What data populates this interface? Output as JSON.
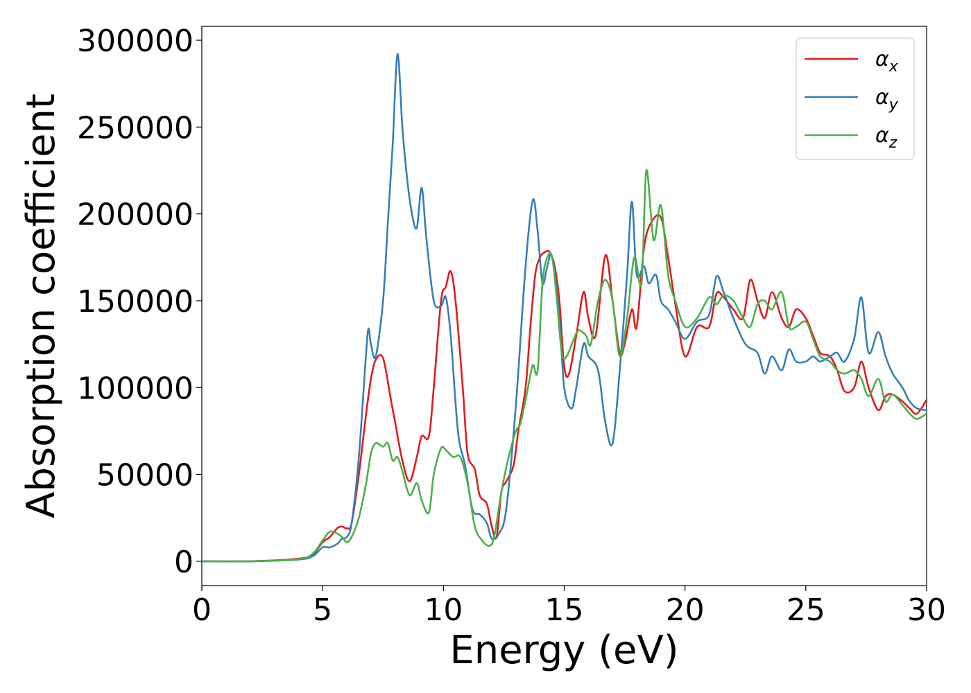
{
  "chart_data": {
    "type": "line",
    "xlabel": "Energy (eV)",
    "ylabel": "Absorption coefficient",
    "xlim": [
      0,
      30
    ],
    "ylim": [
      -14000,
      308000
    ],
    "xticks": [
      "0",
      "5",
      "10",
      "15",
      "20",
      "25",
      "30"
    ],
    "yticks": [
      "0",
      "50000",
      "100000",
      "150000",
      "200000",
      "250000",
      "300000"
    ],
    "grid": false,
    "legend_position": "top-right",
    "series": [
      {
        "name": "α_x",
        "symbol": "α",
        "subscript": "x",
        "color": "#e41a1c",
        "x": [
          0,
          2,
          4,
          4.6,
          5,
          5.3,
          5.6,
          5.8,
          6.0,
          6.2,
          6.5,
          6.8,
          7.0,
          7.2,
          7.5,
          7.8,
          8.0,
          8.3,
          8.6,
          8.9,
          9.1,
          9.4,
          9.6,
          9.9,
          10.1,
          10.3,
          10.5,
          10.8,
          11.0,
          11.3,
          11.5,
          11.8,
          12.0,
          12.2,
          12.4,
          12.6,
          12.9,
          13.1,
          13.4,
          13.6,
          13.8,
          14.0,
          14.2,
          14.4,
          14.6,
          14.8,
          15.0,
          15.2,
          15.5,
          15.8,
          16.0,
          16.3,
          16.7,
          17.0,
          17.3,
          17.5,
          17.8,
          18.0,
          18.3,
          18.6,
          19.0,
          19.3,
          19.6,
          20.0,
          20.5,
          21.0,
          21.3,
          21.6,
          22.0,
          22.4,
          22.7,
          23.0,
          23.3,
          23.6,
          24.0,
          24.3,
          24.6,
          25.0,
          25.3,
          25.6,
          26.0,
          26.3,
          26.6,
          27.0,
          27.3,
          27.6,
          28.0,
          28.3,
          28.6,
          29.0,
          29.3,
          29.6,
          30.0
        ],
        "y": [
          0,
          0,
          1500,
          4000,
          11000,
          14000,
          19000,
          20000,
          19000,
          22000,
          50000,
          85000,
          105000,
          116000,
          117000,
          95000,
          80000,
          58000,
          46000,
          60000,
          72000,
          72000,
          100000,
          150000,
          158000,
          167000,
          150000,
          100000,
          62000,
          53000,
          38000,
          33000,
          20000,
          14000,
          40000,
          46000,
          55000,
          75000,
          100000,
          135000,
          165000,
          175000,
          178000,
          178000,
          170000,
          150000,
          112000,
          108000,
          130000,
          155000,
          140000,
          130000,
          176000,
          150000,
          120000,
          125000,
          145000,
          135000,
          180000,
          195000,
          198000,
          175000,
          148000,
          118000,
          135000,
          135000,
          154000,
          152000,
          145000,
          140000,
          162000,
          150000,
          140000,
          155000,
          140000,
          135000,
          145000,
          140000,
          130000,
          120000,
          118000,
          110000,
          98000,
          100000,
          115000,
          100000,
          87000,
          95000,
          96000,
          92000,
          88000,
          85000,
          93000
        ]
      },
      {
        "name": "α_y",
        "symbol": "α",
        "subscript": "y",
        "color": "#377eb8",
        "x": [
          0,
          2,
          4,
          4.6,
          5,
          5.3,
          5.6,
          5.8,
          6.0,
          6.2,
          6.5,
          6.8,
          6.9,
          7.0,
          7.2,
          7.5,
          7.7,
          7.9,
          8.1,
          8.3,
          8.5,
          8.7,
          8.9,
          9.1,
          9.3,
          9.6,
          9.9,
          10.1,
          10.3,
          10.6,
          10.9,
          11.2,
          11.5,
          11.8,
          12.0,
          12.3,
          12.6,
          13.0,
          13.4,
          13.7,
          13.9,
          14.1,
          14.3,
          14.5,
          14.8,
          15.0,
          15.3,
          15.5,
          15.8,
          16.0,
          16.4,
          16.7,
          17.0,
          17.3,
          17.6,
          17.8,
          18.0,
          18.3,
          18.5,
          18.8,
          19.0,
          19.3,
          19.6,
          20.0,
          20.5,
          21.0,
          21.3,
          21.6,
          22.0,
          22.5,
          23.0,
          23.3,
          23.6,
          24.0,
          24.3,
          24.6,
          25.0,
          25.3,
          25.6,
          26.0,
          26.3,
          26.6,
          27.0,
          27.3,
          27.6,
          28.0,
          28.3,
          28.6,
          29.0,
          29.3,
          29.6,
          30.0
        ],
        "y": [
          0,
          0,
          1000,
          3000,
          8000,
          8000,
          10000,
          13000,
          14000,
          22000,
          60000,
          120000,
          134000,
          125000,
          118000,
          150000,
          195000,
          240000,
          292000,
          250000,
          220000,
          200000,
          192000,
          215000,
          185000,
          150000,
          147000,
          152000,
          130000,
          75000,
          55000,
          30000,
          27000,
          22000,
          13000,
          16000,
          30000,
          90000,
          170000,
          208000,
          190000,
          160000,
          170000,
          175000,
          140000,
          100000,
          88000,
          100000,
          125000,
          118000,
          110000,
          80000,
          68000,
          110000,
          165000,
          207000,
          165000,
          170000,
          160000,
          165000,
          150000,
          145000,
          138000,
          128000,
          138000,
          142000,
          164000,
          155000,
          140000,
          125000,
          120000,
          108000,
          118000,
          110000,
          122000,
          115000,
          115000,
          118000,
          115000,
          118000,
          120000,
          115000,
          128000,
          152000,
          120000,
          132000,
          118000,
          108000,
          100000,
          92000,
          88000,
          87000
        ]
      },
      {
        "name": "α_z",
        "symbol": "α",
        "subscript": "z",
        "color": "#4daf4a",
        "x": [
          0,
          2,
          4,
          4.6,
          5,
          5.3,
          5.6,
          5.8,
          6.0,
          6.2,
          6.5,
          6.8,
          7.0,
          7.2,
          7.5,
          7.7,
          7.9,
          8.1,
          8.3,
          8.6,
          8.9,
          9.1,
          9.4,
          9.6,
          9.9,
          10.1,
          10.4,
          10.7,
          11.0,
          11.3,
          11.6,
          11.9,
          12.1,
          12.4,
          12.7,
          13.0,
          13.2,
          13.5,
          13.7,
          13.9,
          14.1,
          14.3,
          14.5,
          14.7,
          14.9,
          15.1,
          15.4,
          15.6,
          15.9,
          16.1,
          16.4,
          16.7,
          17.0,
          17.3,
          17.6,
          17.9,
          18.2,
          18.4,
          18.7,
          19.0,
          19.3,
          19.6,
          20.0,
          20.5,
          21.0,
          21.3,
          21.6,
          22.0,
          22.4,
          22.7,
          23.0,
          23.3,
          23.6,
          24.0,
          24.3,
          24.6,
          25.0,
          25.3,
          25.6,
          26.0,
          26.3,
          26.6,
          27.0,
          27.3,
          27.6,
          28.0,
          28.3,
          28.6,
          29.0,
          29.3,
          29.6,
          30.0
        ],
        "y": [
          0,
          0,
          1200,
          4500,
          12000,
          17000,
          16000,
          14000,
          11000,
          14000,
          25000,
          45000,
          62000,
          68000,
          66000,
          68000,
          58000,
          60000,
          52000,
          38000,
          45000,
          35000,
          28000,
          50000,
          65000,
          64000,
          60000,
          60000,
          45000,
          20000,
          12000,
          9000,
          14000,
          40000,
          60000,
          75000,
          80000,
          100000,
          113000,
          110000,
          160000,
          175000,
          175000,
          150000,
          120000,
          118000,
          128000,
          133000,
          130000,
          125000,
          150000,
          162000,
          150000,
          118000,
          140000,
          175000,
          160000,
          225000,
          185000,
          205000,
          165000,
          150000,
          135000,
          140000,
          152000,
          148000,
          153000,
          150000,
          140000,
          135000,
          148000,
          150000,
          145000,
          155000,
          135000,
          135000,
          138000,
          128000,
          118000,
          115000,
          110000,
          108000,
          110000,
          105000,
          95000,
          105000,
          92000,
          96000,
          90000,
          85000,
          82000,
          85000
        ]
      }
    ]
  }
}
